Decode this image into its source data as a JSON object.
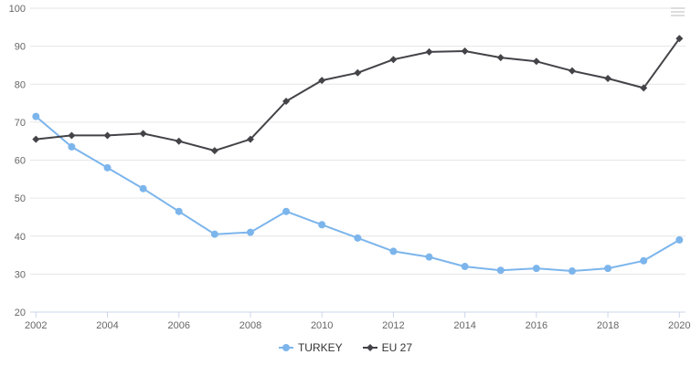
{
  "chart_data": {
    "type": "line",
    "title": "",
    "xlabel": "",
    "ylabel": "",
    "x": [
      2002,
      2003,
      2004,
      2005,
      2006,
      2007,
      2008,
      2009,
      2010,
      2011,
      2012,
      2013,
      2014,
      2015,
      2016,
      2017,
      2018,
      2019,
      2020
    ],
    "x_tick_labels": [
      "2002",
      "2004",
      "2006",
      "2008",
      "2010",
      "2012",
      "2014",
      "2016",
      "2018",
      "2020"
    ],
    "y_ticks": [
      20,
      30,
      40,
      50,
      60,
      70,
      80,
      90,
      100
    ],
    "ylim": [
      20,
      100
    ],
    "grid": true,
    "legend_position": "bottom-center",
    "series": [
      {
        "name": "TURKEY",
        "color": "#7cb5ec",
        "marker": "circle",
        "values": [
          71.5,
          63.5,
          58,
          52.5,
          46.5,
          40.5,
          41,
          46.5,
          43,
          39.5,
          36,
          34.5,
          32,
          31,
          31.5,
          30.8,
          31.5,
          33.5,
          39
        ]
      },
      {
        "name": "EU 27",
        "color": "#434348",
        "marker": "diamond",
        "values": [
          65.5,
          66.5,
          66.5,
          67,
          65,
          62.5,
          65.5,
          75.5,
          81,
          83,
          86.5,
          88.5,
          88.7,
          87,
          86,
          83.5,
          81.5,
          79,
          92
        ]
      }
    ]
  },
  "ui": {
    "grid_color": "#e6e6e6",
    "axis_color": "#ccd6eb",
    "tick_label_color": "#666666",
    "legend_text_color": "#333333",
    "background_color": "#ffffff",
    "context_menu_icon": "hamburger-icon"
  }
}
